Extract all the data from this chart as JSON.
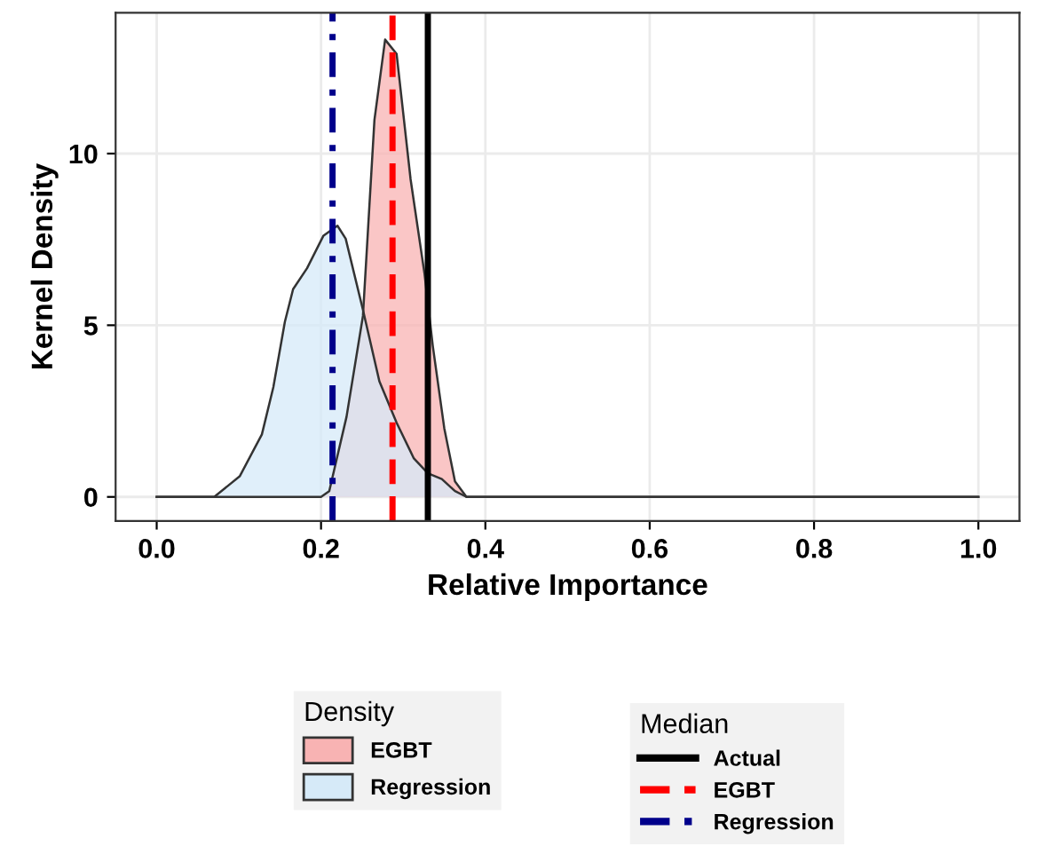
{
  "chart_data": {
    "type": "area",
    "xlabel": "Relative Importance",
    "ylabel": "Kernel Density",
    "legend_title": [
      "Density",
      "Median"
    ],
    "series": [
      {
        "name": "EGBT",
        "color": "#f8b3b3",
        "x": [
          0.0,
          0.2,
          0.21,
          0.231,
          0.251,
          0.265,
          0.278,
          0.292,
          0.309,
          0.326,
          0.336,
          0.35,
          0.363,
          0.377,
          1.0
        ],
        "values": [
          0,
          0,
          0.17,
          2.33,
          5.27,
          10.98,
          13.32,
          12.9,
          9.25,
          6.49,
          4.4,
          2.0,
          0.45,
          0,
          0
        ]
      },
      {
        "name": "Regression",
        "color": "#d6eaf8",
        "x": [
          0.0,
          0.07,
          0.101,
          0.128,
          0.142,
          0.156,
          0.166,
          0.183,
          0.203,
          0.22,
          0.23,
          0.251,
          0.271,
          0.292,
          0.313,
          0.33,
          0.347,
          0.363,
          0.377,
          1.0
        ],
        "values": [
          0,
          0,
          0.6,
          1.82,
          3.2,
          5.1,
          6.05,
          6.66,
          7.61,
          7.9,
          7.52,
          5.45,
          3.37,
          2.16,
          1.12,
          0.69,
          0.52,
          0.17,
          0,
          0
        ]
      }
    ],
    "ref_lines": [
      {
        "axis": "x",
        "value": 0.33,
        "label": "Actual",
        "color": "#000000",
        "line_style": "solid"
      },
      {
        "axis": "x",
        "value": 0.287,
        "label": "EGBT",
        "color": "#ff0000",
        "line_style": "dashed"
      },
      {
        "axis": "x",
        "value": 0.214,
        "label": "Regression",
        "color": "#00008b",
        "line_style": "dashdot"
      }
    ],
    "xlim": [
      -0.05,
      1.05
    ],
    "ylim": [
      -0.7,
      14.1
    ],
    "xticks": [
      {
        "value": 0,
        "label": "0.0"
      },
      0.2,
      0.4,
      0.6,
      0.8,
      {
        "value": 1,
        "label": "1.0"
      }
    ],
    "yticks": [
      0,
      5,
      10
    ],
    "grid": true,
    "legend": "bottom"
  }
}
